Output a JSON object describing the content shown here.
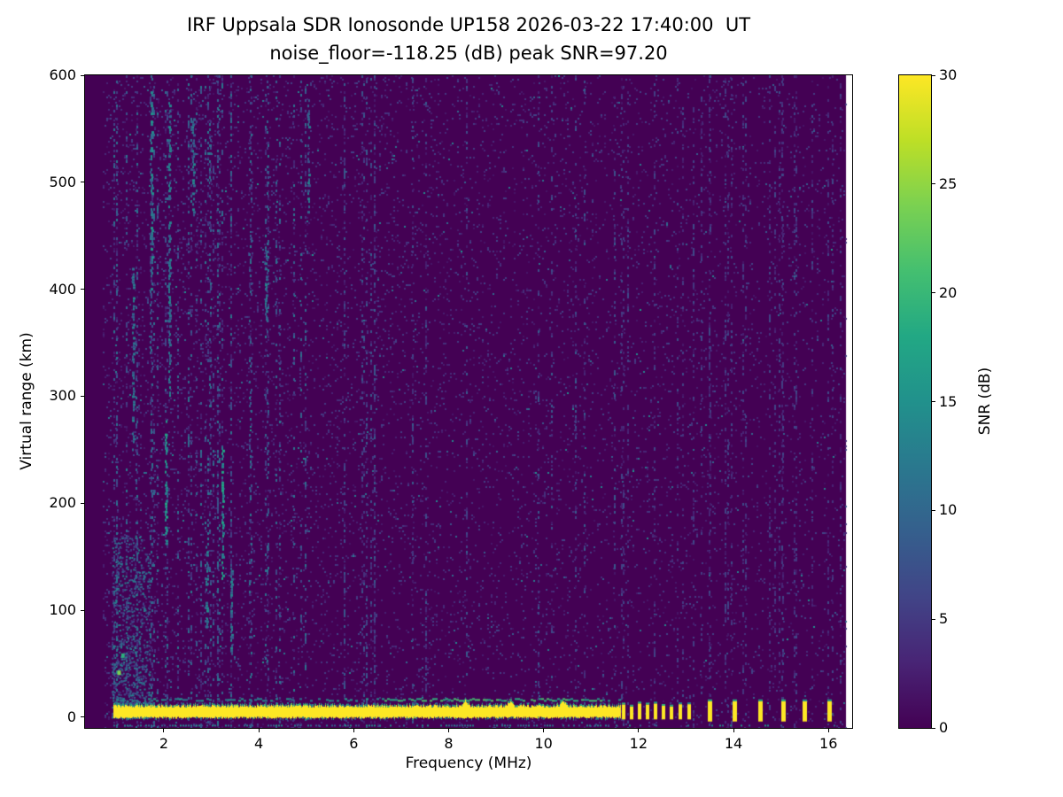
{
  "chart_data": {
    "type": "heatmap",
    "title": "IRF Uppsala SDR Ionosonde UP158 2026-03-22 17:40:00  UT",
    "subtitle": "noise_floor=-118.25 (dB) peak SNR=97.20",
    "xlabel": "Frequency (MHz)",
    "ylabel": "Virtual range (km)",
    "station": "UP158",
    "timestamp_ut": "2026-03-22 17:40:00",
    "noise_floor_db": -118.25,
    "peak_snr_db": 97.2,
    "xlim": [
      0.34,
      16.5
    ],
    "ylim": [
      -10,
      600
    ],
    "x_ticks": [
      2,
      4,
      6,
      8,
      10,
      12,
      14,
      16
    ],
    "y_ticks": [
      0,
      100,
      200,
      300,
      400,
      500,
      600
    ],
    "grid": false,
    "legend": "none",
    "colorbar": {
      "label": "SNR (dB)",
      "min": 0,
      "max": 30,
      "ticks": [
        0,
        5,
        10,
        15,
        20,
        25,
        30
      ],
      "colormap": "viridis",
      "position": "right"
    },
    "colormap_stops": [
      [
        0.0,
        "#440154"
      ],
      [
        0.1,
        "#482475"
      ],
      [
        0.2,
        "#414487"
      ],
      [
        0.3,
        "#355f8d"
      ],
      [
        0.4,
        "#2a788e"
      ],
      [
        0.5,
        "#21918c"
      ],
      [
        0.6,
        "#22a884"
      ],
      [
        0.7,
        "#44bf70"
      ],
      [
        0.8,
        "#7ad151"
      ],
      [
        0.9,
        "#bddf26"
      ],
      [
        1.0,
        "#fde725"
      ]
    ],
    "background_snr_db": 0,
    "features": {
      "data_freq_min": 0.72,
      "data_freq_max": 16.37,
      "speckle": {
        "base_density": 0.085,
        "right_density": 0.04,
        "snr_range": [
          1.5,
          6
        ],
        "hot_fraction": 0.06
      },
      "ground_pulse": {
        "freq_start": 0.95,
        "freq_end": 11.62,
        "core_top_km": 10,
        "core_bottom_km": 0.5,
        "snr": 30,
        "bumps_mhz": [
          8.35,
          9.3,
          10.4
        ]
      },
      "echo_line": {
        "y_km": 17,
        "freq_start": 1.0,
        "freq_end": 11.6,
        "snr": 14,
        "bright_range_mhz": [
          6.5,
          11.2
        ]
      },
      "bottom_dashes": {
        "y_km": -7,
        "snr": 12
      },
      "pulsed_marks": {
        "dense_mhz": [
          11.68,
          11.85,
          12.02,
          12.19,
          12.36,
          12.53,
          12.7,
          12.88,
          13.06
        ],
        "sparse_mhz": [
          13.5,
          14.02,
          14.55,
          15.05,
          15.5,
          16.02
        ],
        "top_km": 13,
        "bottom_km": -2,
        "snr": 30
      },
      "interference_streaks": [
        {
          "freq_mhz": 1.75,
          "from_km": 400,
          "to_km": 585,
          "snr": 13
        },
        {
          "freq_mhz": 2.05,
          "from_km": 160,
          "to_km": 280,
          "snr": 15
        },
        {
          "freq_mhz": 2.12,
          "from_km": 300,
          "to_km": 580,
          "snr": 11
        },
        {
          "freq_mhz": 2.62,
          "from_km": 470,
          "to_km": 560,
          "snr": 11
        },
        {
          "freq_mhz": 2.9,
          "from_km": 85,
          "to_km": 160,
          "snr": 12
        },
        {
          "freq_mhz": 3.25,
          "from_km": 130,
          "to_km": 255,
          "snr": 15
        },
        {
          "freq_mhz": 3.42,
          "from_km": 60,
          "to_km": 140,
          "snr": 11
        },
        {
          "freq_mhz": 4.15,
          "from_km": 370,
          "to_km": 440,
          "snr": 11
        },
        {
          "freq_mhz": 5.05,
          "from_km": 470,
          "to_km": 580,
          "snr": 10
        },
        {
          "freq_mhz": 1.35,
          "from_km": 250,
          "to_km": 420,
          "snr": 11
        }
      ],
      "near_range_clutter": {
        "freq_range_mhz": [
          0.9,
          1.7
        ],
        "km_range": [
          0,
          170
        ],
        "snr_range": [
          4,
          14
        ],
        "bright_points": [
          {
            "freq_mhz": 1.04,
            "km": 42,
            "snr": 24
          },
          {
            "freq_mhz": 1.12,
            "km": 58,
            "snr": 19
          }
        ]
      },
      "column_noise": [
        {
          "freq_range": [
            0.85,
            5.0
          ],
          "count": 40,
          "snr_max": 12
        },
        {
          "freq_range": [
            5.0,
            11.5
          ],
          "count": 16,
          "snr_max": 9
        },
        {
          "freq_range": [
            11.6,
            16.3
          ],
          "count": 26,
          "snr_max": 7
        }
      ]
    }
  }
}
